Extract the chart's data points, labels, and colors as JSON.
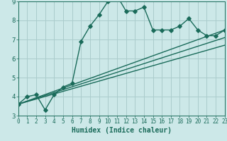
{
  "xlabel": "Humidex (Indice chaleur)",
  "xlim": [
    0,
    23
  ],
  "ylim": [
    3,
    9
  ],
  "xticks": [
    0,
    1,
    2,
    3,
    4,
    5,
    6,
    7,
    8,
    9,
    10,
    11,
    12,
    13,
    14,
    15,
    16,
    17,
    18,
    19,
    20,
    21,
    22,
    23
  ],
  "yticks": [
    3,
    4,
    5,
    6,
    7,
    8,
    9
  ],
  "bg_color": "#cce8e8",
  "grid_color": "#aacccc",
  "line_color": "#1a6b5a",
  "series": [
    {
      "x": [
        0,
        1,
        2,
        3,
        4,
        5,
        6,
        7,
        8,
        9,
        10,
        11,
        12,
        13,
        14,
        15,
        16,
        17,
        18,
        19,
        20,
        21,
        22,
        23
      ],
      "y": [
        3.6,
        4.0,
        4.1,
        3.3,
        4.1,
        4.5,
        4.7,
        6.9,
        7.7,
        8.3,
        9.0,
        9.3,
        8.5,
        8.5,
        8.7,
        7.5,
        7.5,
        7.5,
        7.7,
        8.1,
        7.5,
        7.2,
        7.2,
        7.5
      ],
      "marker": "D",
      "linestyle": "-",
      "linewidth": 1.0
    },
    {
      "x": [
        0,
        23
      ],
      "y": [
        3.6,
        7.5
      ],
      "marker": null,
      "linestyle": "-",
      "linewidth": 1.0
    },
    {
      "x": [
        0,
        23
      ],
      "y": [
        3.6,
        7.1
      ],
      "marker": null,
      "linestyle": "-",
      "linewidth": 1.0
    },
    {
      "x": [
        0,
        23
      ],
      "y": [
        3.6,
        6.7
      ],
      "marker": null,
      "linestyle": "-",
      "linewidth": 1.0
    }
  ],
  "xlabel_fontsize": 7,
  "tick_fontsize_x": 5.5,
  "tick_fontsize_y": 6.5
}
